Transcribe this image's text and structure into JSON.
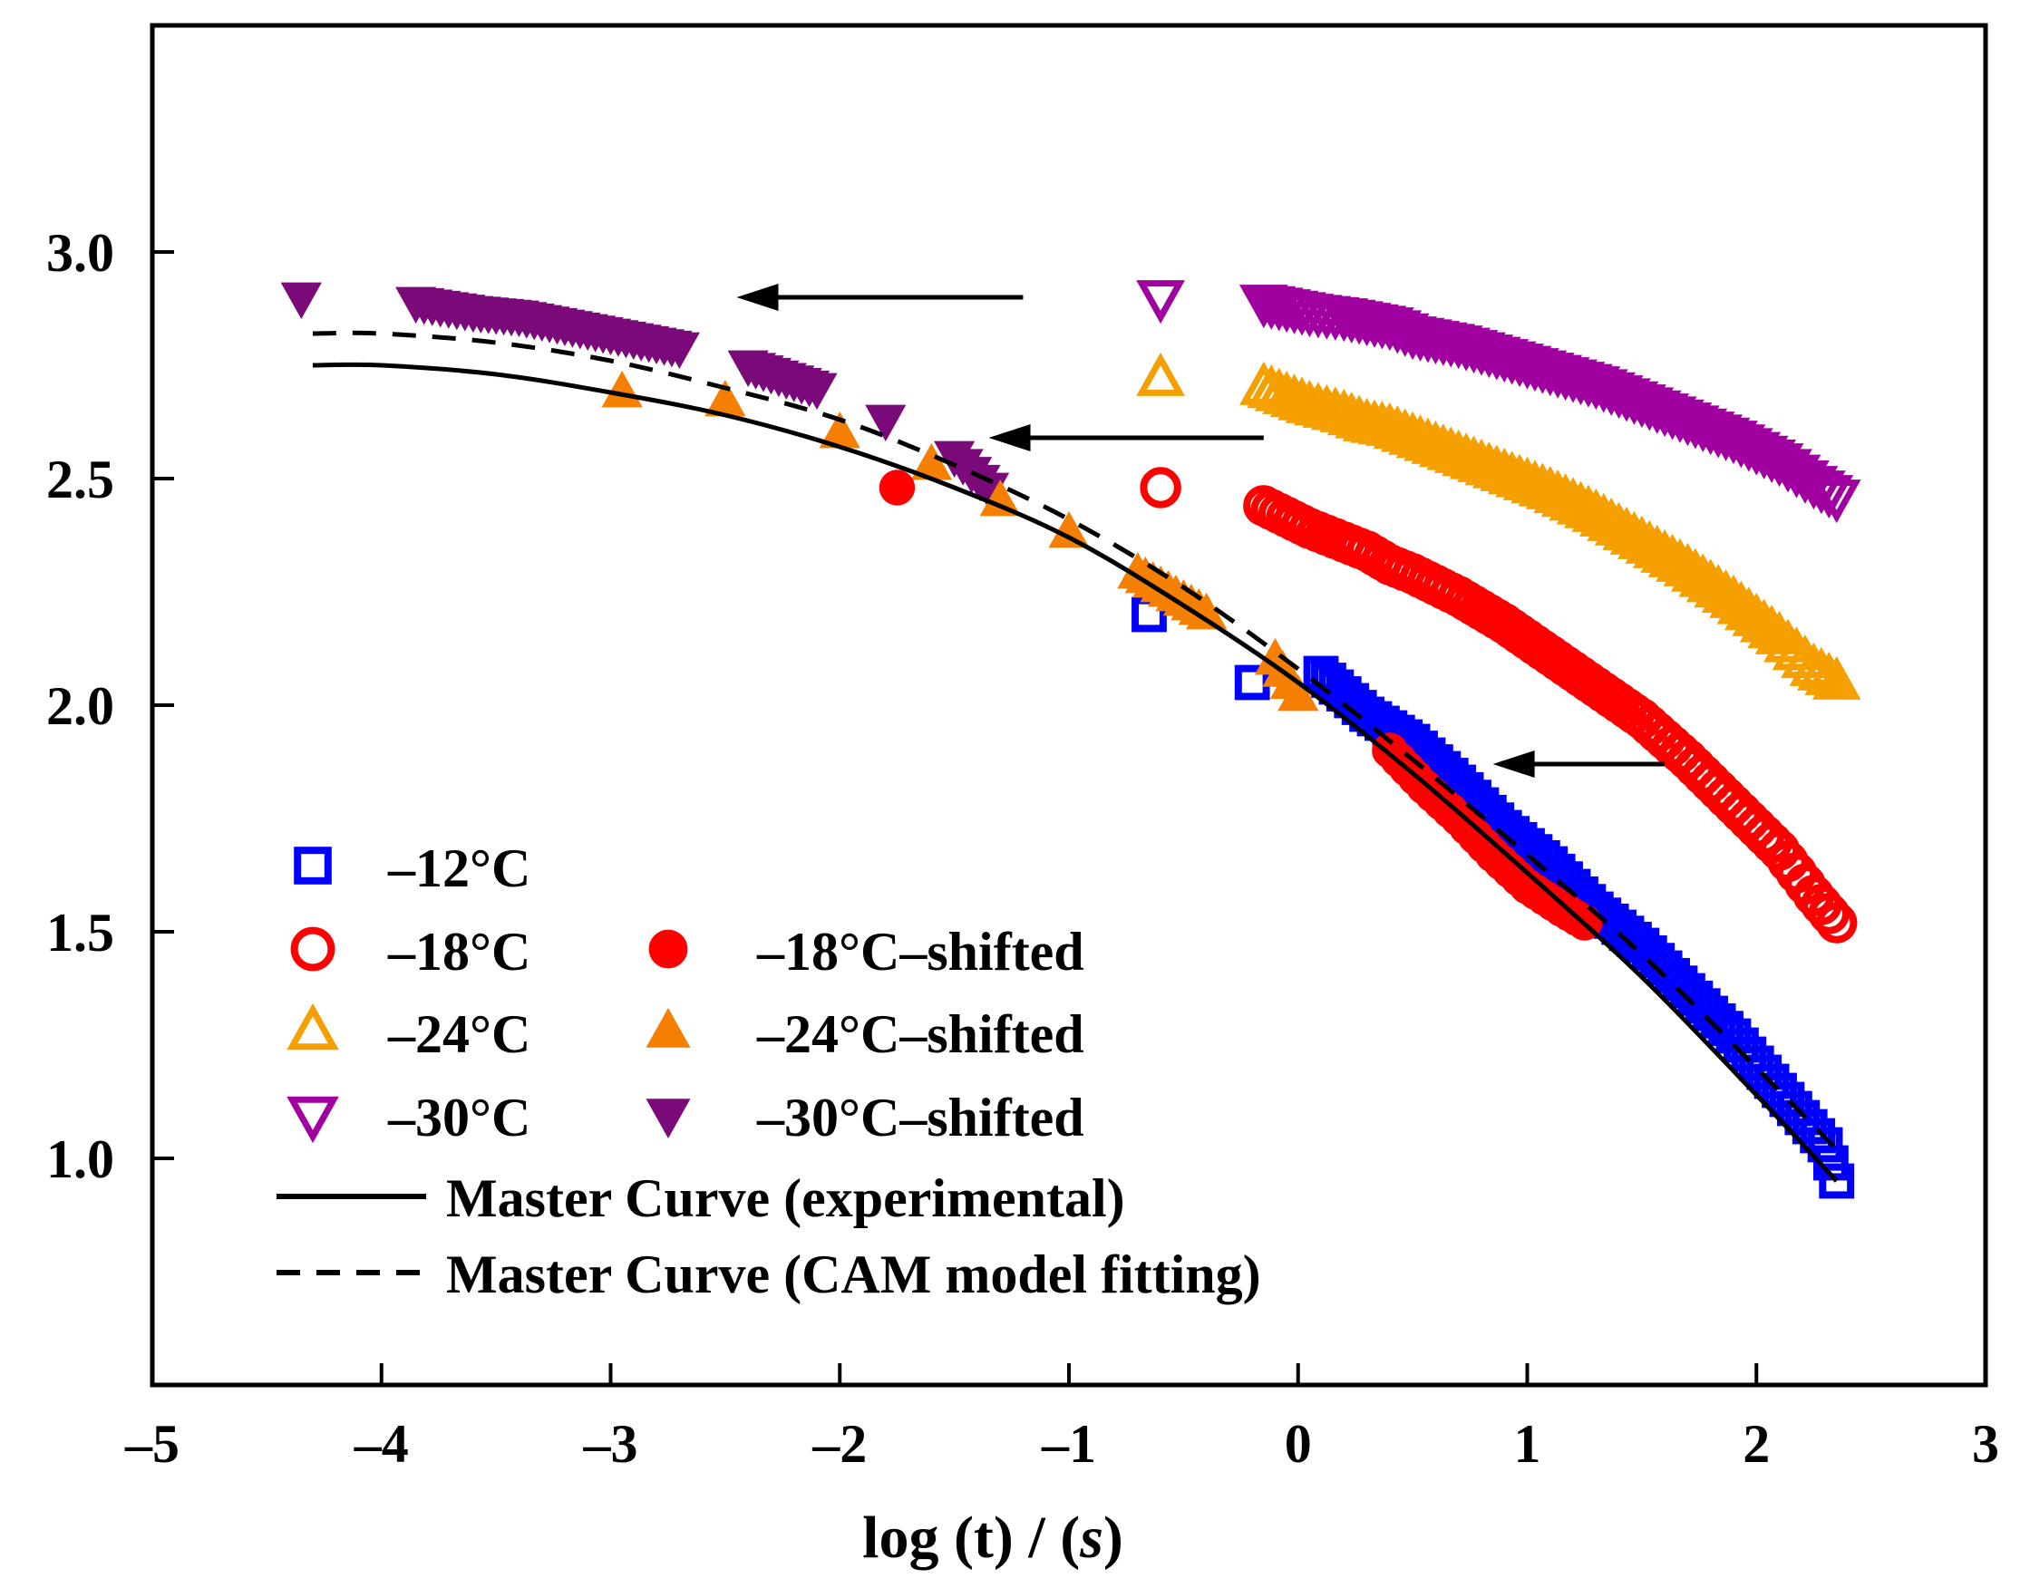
{
  "chart_data": {
    "type": "scatter",
    "title": "",
    "xlabel": "log (t) / (s)",
    "xlabel_parts": [
      "log (t) / (",
      "s",
      ")"
    ],
    "ylabel": "",
    "xlim": [
      -5,
      3
    ],
    "ylim": [
      0.5,
      3.5
    ],
    "xticks": [
      -5,
      -4,
      -3,
      -2,
      -1,
      0,
      1,
      2,
      3
    ],
    "xtick_labels": [
      "–5",
      "–4",
      "–3",
      "–2",
      "–1",
      "0",
      "1",
      "2",
      "3"
    ],
    "yticks": [
      1.0,
      1.5,
      2.0,
      2.5,
      3.0
    ],
    "ytick_labels": [
      "1.0",
      "1.5",
      "2.0",
      "2.5",
      "3.0"
    ],
    "grid": false,
    "legend_position": "bottom-left",
    "colors": {
      "blue": "#0000ff",
      "red": "#ff0000",
      "orange_open": "#f5a000",
      "orange_filled": "#f57f00",
      "purple_open": "#a000a0",
      "purple_filled": "#7a0a7a",
      "black": "#000000"
    },
    "series": [
      {
        "name": "–12°C",
        "marker": "square-open",
        "color": "#0000ff",
        "x": [
          -0.65,
          -0.2,
          0.1,
          0.3,
          0.5,
          0.7,
          0.9,
          1.1,
          1.3,
          1.5,
          1.7,
          1.9,
          2.1,
          2.3,
          2.35
        ],
        "y": [
          2.2,
          2.05,
          2.07,
          1.98,
          1.92,
          1.83,
          1.73,
          1.65,
          1.55,
          1.47,
          1.37,
          1.27,
          1.15,
          1.03,
          0.95
        ]
      },
      {
        "name": "–18°C",
        "marker": "circle-open",
        "color": "#ff0000",
        "x": [
          -0.6,
          -0.15,
          0.05,
          0.2,
          0.3,
          0.4,
          0.5,
          0.7,
          0.9,
          1.1,
          1.3,
          1.5,
          1.7,
          1.9,
          2.1,
          2.25,
          2.35
        ],
        "y": [
          2.48,
          2.44,
          2.39,
          2.36,
          2.34,
          2.31,
          2.29,
          2.24,
          2.18,
          2.11,
          2.04,
          1.97,
          1.88,
          1.78,
          1.68,
          1.58,
          1.52
        ]
      },
      {
        "name": "–24°C",
        "marker": "triangle-up-open",
        "color": "#f5a000",
        "x": [
          -0.6,
          -0.15,
          0.05,
          0.2,
          0.3,
          0.4,
          0.5,
          0.7,
          0.9,
          1.1,
          1.3,
          1.5,
          1.7,
          1.9,
          2.1,
          2.25,
          2.35
        ],
        "y": [
          2.72,
          2.7,
          2.66,
          2.64,
          2.62,
          2.61,
          2.59,
          2.55,
          2.51,
          2.47,
          2.42,
          2.36,
          2.3,
          2.23,
          2.15,
          2.08,
          2.05
        ]
      },
      {
        "name": "–30°C",
        "marker": "triangle-down-open",
        "color": "#a000a0",
        "x": [
          -0.6,
          -0.15,
          0.05,
          0.2,
          0.3,
          0.4,
          0.5,
          0.7,
          0.9,
          1.1,
          1.3,
          1.5,
          1.7,
          1.9,
          2.1,
          2.25,
          2.35
        ],
        "y": [
          2.9,
          2.89,
          2.87,
          2.86,
          2.85,
          2.84,
          2.82,
          2.8,
          2.77,
          2.74,
          2.71,
          2.67,
          2.63,
          2.59,
          2.54,
          2.49,
          2.46
        ]
      },
      {
        "name": "–18°C–shifted",
        "marker": "circle-filled",
        "color": "#ff0000",
        "x": [
          -1.75,
          0.4,
          0.55,
          0.7,
          0.85,
          1.0,
          1.15,
          1.25
        ],
        "y": [
          2.48,
          1.9,
          1.82,
          1.75,
          1.67,
          1.6,
          1.55,
          1.52
        ]
      },
      {
        "name": "–24°C–shifted",
        "marker": "triangle-up-filled",
        "color": "#f57f00",
        "x": [
          -2.95,
          -2.5,
          -2.0,
          -1.6,
          -1.3,
          -1.0,
          -0.7,
          -0.4,
          -0.1,
          0.0
        ],
        "y": [
          2.69,
          2.67,
          2.6,
          2.53,
          2.45,
          2.38,
          2.29,
          2.2,
          2.1,
          2.02
        ]
      },
      {
        "name": "–30°C–shifted",
        "marker": "triangle-down-filled",
        "color": "#7a0a7a",
        "x": [
          -4.35,
          -3.85,
          -3.6,
          -3.4,
          -3.2,
          -3.0,
          -2.7,
          -2.4,
          -2.1,
          -1.8,
          -1.5,
          -1.35
        ],
        "y": [
          2.9,
          2.89,
          2.87,
          2.86,
          2.84,
          2.82,
          2.79,
          2.75,
          2.7,
          2.63,
          2.55,
          2.48
        ]
      }
    ],
    "curves": [
      {
        "name": "Master Curve (experimental)",
        "style": "solid",
        "x": [
          -4.3,
          -4.0,
          -3.5,
          -3.0,
          -2.5,
          -2.0,
          -1.5,
          -1.0,
          -0.5,
          0.0,
          0.5,
          1.0,
          1.5,
          2.0,
          2.35
        ],
        "y": [
          2.75,
          2.75,
          2.73,
          2.69,
          2.64,
          2.57,
          2.48,
          2.37,
          2.22,
          2.05,
          1.85,
          1.63,
          1.4,
          1.14,
          0.95
        ]
      },
      {
        "name": "Master Curve (CAM model fitting)",
        "style": "dashed",
        "x": [
          -4.3,
          -4.0,
          -3.5,
          -3.0,
          -2.5,
          -2.0,
          -1.5,
          -1.0,
          -0.5,
          0.0,
          0.5,
          1.0,
          1.5,
          2.0,
          2.35
        ],
        "y": [
          2.82,
          2.82,
          2.8,
          2.76,
          2.7,
          2.63,
          2.53,
          2.41,
          2.26,
          2.08,
          1.88,
          1.67,
          1.45,
          1.2,
          1.02
        ]
      }
    ],
    "annotations": [
      {
        "type": "arrow",
        "from": [
          -1.2,
          2.9
        ],
        "to": [
          -2.45,
          2.9
        ]
      },
      {
        "type": "arrow",
        "from": [
          -0.15,
          2.59
        ],
        "to": [
          -1.35,
          2.59
        ]
      },
      {
        "type": "arrow",
        "from": [
          1.6,
          1.87
        ],
        "to": [
          0.85,
          1.87
        ]
      }
    ],
    "legend": [
      "–12°C",
      "–18°C",
      "–24°C",
      "–30°C",
      "–18°C–shifted",
      "–24°C–shifted",
      "–30°C–shifted",
      "Master Curve (experimental)",
      "Master Curve (CAM model fitting)"
    ]
  }
}
